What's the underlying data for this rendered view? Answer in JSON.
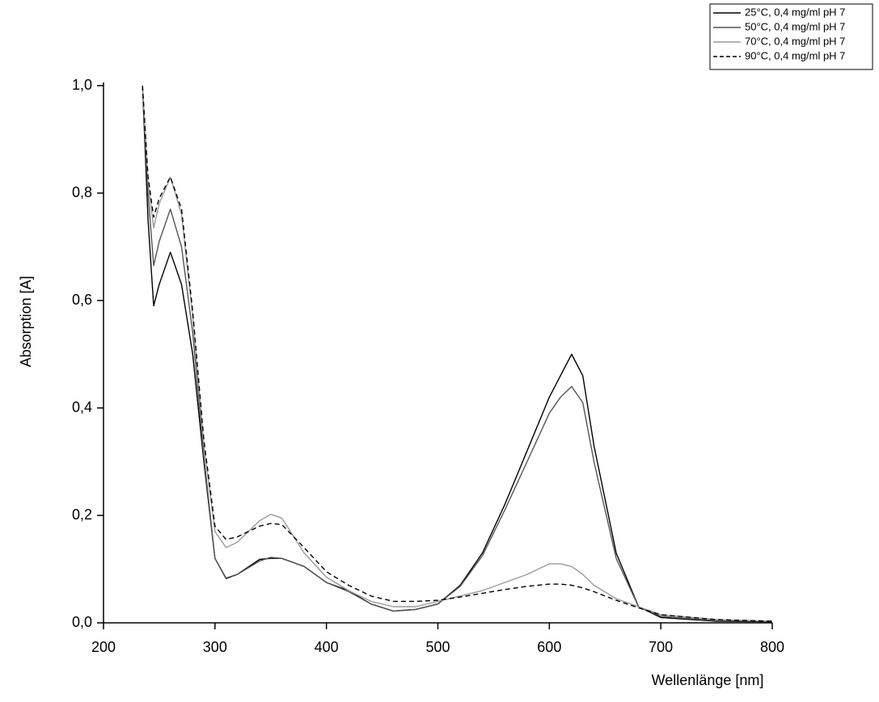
{
  "chart_data": {
    "type": "line",
    "xlabel": "Wellenlänge [nm]",
    "ylabel": "Absorption [A]",
    "xlim": [
      200,
      800
    ],
    "xticks": [
      200,
      300,
      400,
      500,
      600,
      700,
      800
    ],
    "ylim": [
      0,
      1
    ],
    "yticks": [
      {
        "value": 0,
        "label": "0,0"
      },
      {
        "value": 0.2,
        "label": "0,2"
      },
      {
        "value": 0.4,
        "label": "0,4"
      },
      {
        "value": 0.6,
        "label": "0,6"
      },
      {
        "value": 0.8,
        "label": "0,8"
      },
      {
        "value": 1,
        "label": "1,0"
      }
    ],
    "legend": "top-right",
    "grid": false,
    "x": [
      235,
      240,
      245,
      250,
      260,
      270,
      280,
      290,
      300,
      310,
      320,
      340,
      350,
      360,
      380,
      400,
      420,
      440,
      460,
      480,
      500,
      520,
      540,
      560,
      580,
      600,
      610,
      620,
      630,
      640,
      660,
      680,
      700,
      750,
      800
    ],
    "series": [
      {
        "name": "25°C, 0,4 mg/ml pH 7",
        "color": "#000000",
        "dash": false,
        "values": [
          1.0,
          0.75,
          0.59,
          0.63,
          0.69,
          0.63,
          0.5,
          0.3,
          0.12,
          0.083,
          0.09,
          0.118,
          0.12,
          0.12,
          0.105,
          0.075,
          0.06,
          0.035,
          0.022,
          0.025,
          0.035,
          0.07,
          0.13,
          0.22,
          0.32,
          0.42,
          0.46,
          0.5,
          0.46,
          0.33,
          0.13,
          0.03,
          0.01,
          0.003,
          0.002
        ]
      },
      {
        "name": "50°C, 0,4 mg/ml pH 7",
        "color": "#555555",
        "dash": false,
        "values": [
          1.0,
          0.8,
          0.665,
          0.71,
          0.77,
          0.7,
          0.54,
          0.31,
          0.12,
          0.082,
          0.09,
          0.115,
          0.122,
          0.12,
          0.105,
          0.075,
          0.058,
          0.035,
          0.022,
          0.025,
          0.035,
          0.068,
          0.125,
          0.21,
          0.3,
          0.39,
          0.42,
          0.44,
          0.41,
          0.3,
          0.12,
          0.03,
          0.012,
          0.004,
          0.003
        ]
      },
      {
        "name": "70°C, 0,4 mg/ml pH 7",
        "color": "#9a9a9a",
        "dash": false,
        "values": [
          1.0,
          0.82,
          0.735,
          0.78,
          0.83,
          0.76,
          0.57,
          0.33,
          0.17,
          0.14,
          0.15,
          0.19,
          0.202,
          0.195,
          0.13,
          0.085,
          0.06,
          0.04,
          0.03,
          0.03,
          0.04,
          0.05,
          0.06,
          0.075,
          0.09,
          0.11,
          0.11,
          0.105,
          0.09,
          0.07,
          0.045,
          0.03,
          0.015,
          0.006,
          0.003
        ]
      },
      {
        "name": "90°C, 0,4 mg/ml pH 7",
        "color": "#000000",
        "dash": true,
        "values": [
          1.0,
          0.83,
          0.755,
          0.79,
          0.83,
          0.77,
          0.58,
          0.34,
          0.18,
          0.155,
          0.16,
          0.18,
          0.185,
          0.183,
          0.14,
          0.095,
          0.07,
          0.05,
          0.04,
          0.04,
          0.042,
          0.048,
          0.055,
          0.062,
          0.068,
          0.072,
          0.072,
          0.07,
          0.065,
          0.058,
          0.042,
          0.028,
          0.015,
          0.006,
          0.003
        ]
      }
    ]
  }
}
